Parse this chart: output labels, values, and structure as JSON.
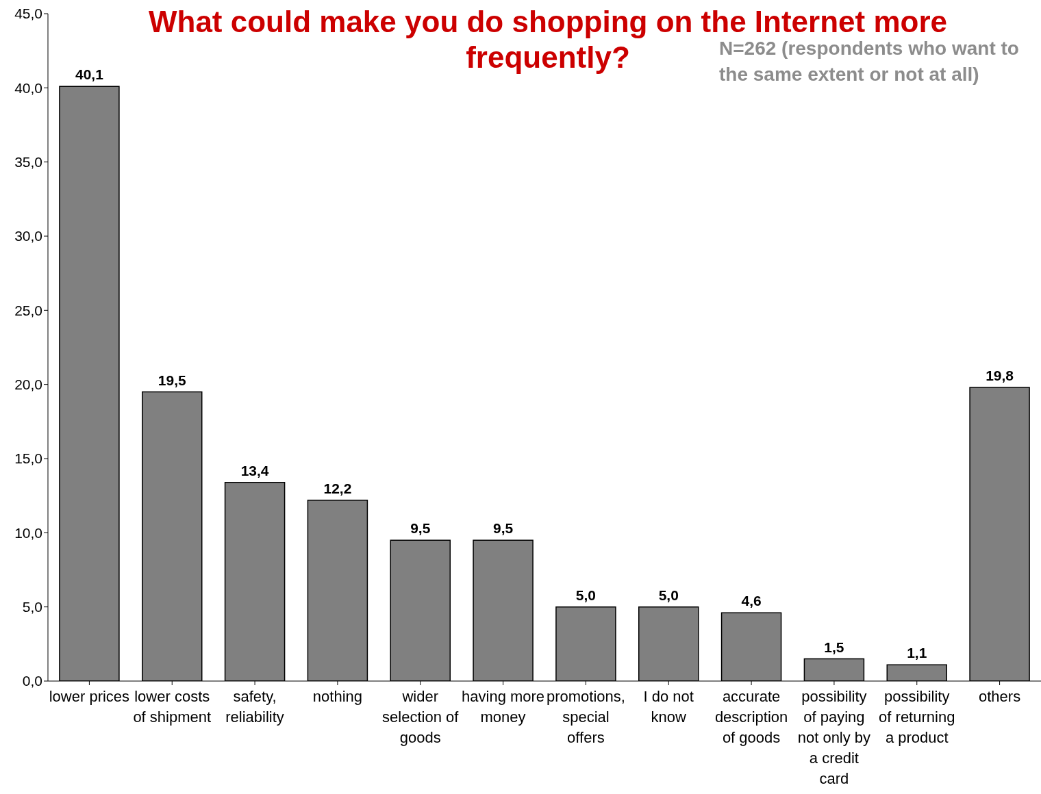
{
  "chart_data": {
    "type": "bar",
    "title": "What could make you do shopping on the Internet more frequently?",
    "subtitle": "N=262 (respondents who want to the same extent or not at all)",
    "categories": [
      "lower prices",
      "lower costs of shipment",
      "safety, reliability",
      "nothing",
      "wider selection of goods",
      "having more money",
      "promotions, special offers",
      "I do not know",
      "accurate description of goods",
      "possibility of paying not only by a credit card",
      "possibility of returning a product",
      "others"
    ],
    "values": [
      40.1,
      19.5,
      13.4,
      12.2,
      9.5,
      9.5,
      5.0,
      5.0,
      4.6,
      1.5,
      1.1,
      19.8
    ],
    "value_labels": [
      "40,1",
      "19,5",
      "13,4",
      "12,2",
      "9,5",
      "9,5",
      "5,0",
      "5,0",
      "4,6",
      "1,5",
      "1,1",
      "19,8"
    ],
    "color": "#808080",
    "ylim": [
      0,
      45
    ],
    "yticks": [
      {
        "value": 0,
        "label": "0,0"
      },
      {
        "value": 5,
        "label": "5,0"
      },
      {
        "value": 10,
        "label": "10,0"
      },
      {
        "value": 15,
        "label": "15,0"
      },
      {
        "value": 20,
        "label": "20,0"
      },
      {
        "value": 25,
        "label": "25,0"
      },
      {
        "value": 30,
        "label": "30,0"
      },
      {
        "value": 35,
        "label": "35,0"
      },
      {
        "value": 40,
        "label": "40,0"
      },
      {
        "value": 45,
        "label": "45,0"
      }
    ],
    "grid": false,
    "legend": false
  }
}
